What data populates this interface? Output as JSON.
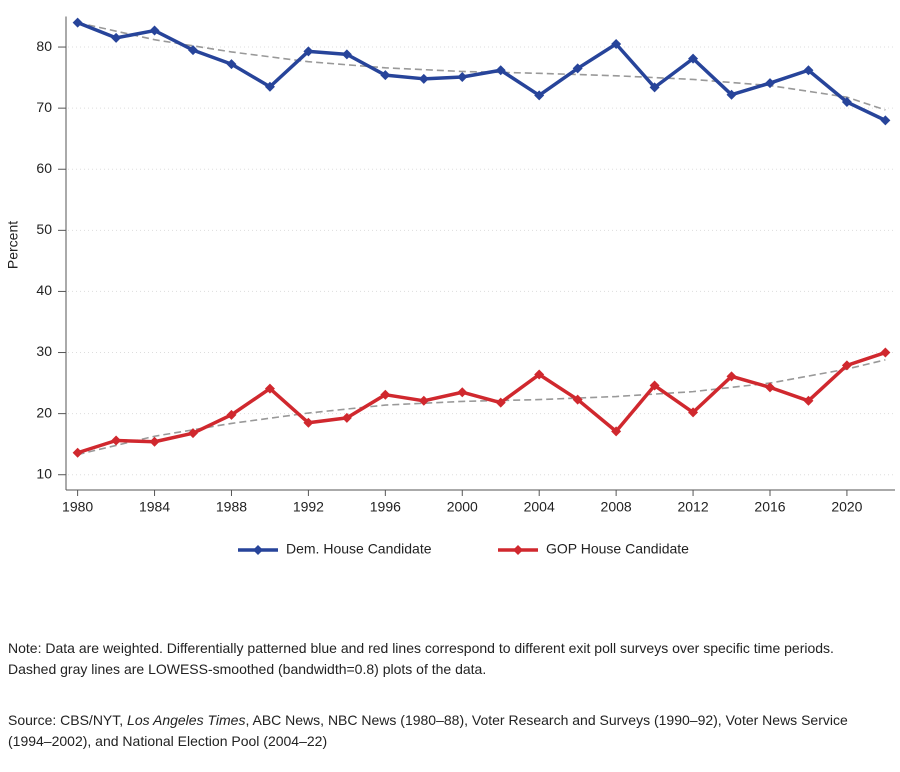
{
  "chart_data": {
    "type": "line",
    "y_label": "Percent",
    "x": [
      1980,
      1982,
      1984,
      1986,
      1988,
      1990,
      1992,
      1994,
      1996,
      1998,
      2000,
      2002,
      2004,
      2006,
      2008,
      2010,
      2012,
      2014,
      2016,
      2018,
      2020,
      2022
    ],
    "series": [
      {
        "name": "Dem. House Candidate",
        "color": "#27449a",
        "values": [
          84.0,
          81.5,
          82.7,
          79.5,
          77.2,
          73.5,
          79.3,
          78.8,
          75.4,
          74.8,
          75.1,
          76.2,
          72.1,
          76.5,
          80.5,
          73.4,
          78.1,
          72.2,
          74.1,
          76.2,
          71.0,
          68.0
        ]
      },
      {
        "name": "GOP House Candidate",
        "color": "#d0282e",
        "values": [
          13.6,
          15.6,
          15.4,
          16.8,
          19.8,
          24.1,
          18.5,
          19.3,
          23.1,
          22.1,
          23.5,
          21.8,
          26.4,
          22.3,
          17.1,
          24.6,
          20.2,
          26.1,
          24.3,
          22.1,
          27.9,
          30.0
        ]
      }
    ],
    "smoothed": [
      {
        "color": "#999999",
        "x": [
          1980,
          1984,
          1988,
          1992,
          1996,
          2000,
          2004,
          2008,
          2012,
          2016,
          2020,
          2022
        ],
        "values": [
          84.0,
          81.2,
          79.2,
          77.6,
          76.6,
          76.0,
          75.7,
          75.3,
          74.7,
          73.7,
          71.8,
          69.7
        ]
      },
      {
        "color": "#999999",
        "x": [
          1980,
          1984,
          1988,
          1992,
          1996,
          2000,
          2004,
          2008,
          2012,
          2016,
          2020,
          2022
        ],
        "values": [
          13.3,
          16.3,
          18.4,
          20.1,
          21.4,
          22.0,
          22.3,
          22.8,
          23.6,
          25.0,
          27.3,
          28.8
        ]
      }
    ],
    "xlim": [
      1979.5,
      2022.5
    ],
    "xticks": [
      1980,
      1984,
      1988,
      1992,
      1996,
      2000,
      2004,
      2008,
      2012,
      2016,
      2020
    ],
    "ylim": [
      7.5,
      85
    ],
    "yticks": [
      10,
      20,
      30,
      40,
      50,
      60,
      70,
      80
    ],
    "grid": true
  },
  "notes": {
    "note": "Note: Data are weighted. Differentially patterned blue and red lines correspond to different exit poll surveys over specific time periods. Dashed gray lines are LOWESS-smoothed (bandwidth=0.8) plots of the data.",
    "source_start": "Source: CBS/NYT,",
    "source_italic": "Los Angeles Times",
    "source_end": ", ABC News, NBC News (1980–88), Voter Research and Surveys (1990–92), Voter News Service (1994–2002), and National Election Pool (2004–22)"
  }
}
